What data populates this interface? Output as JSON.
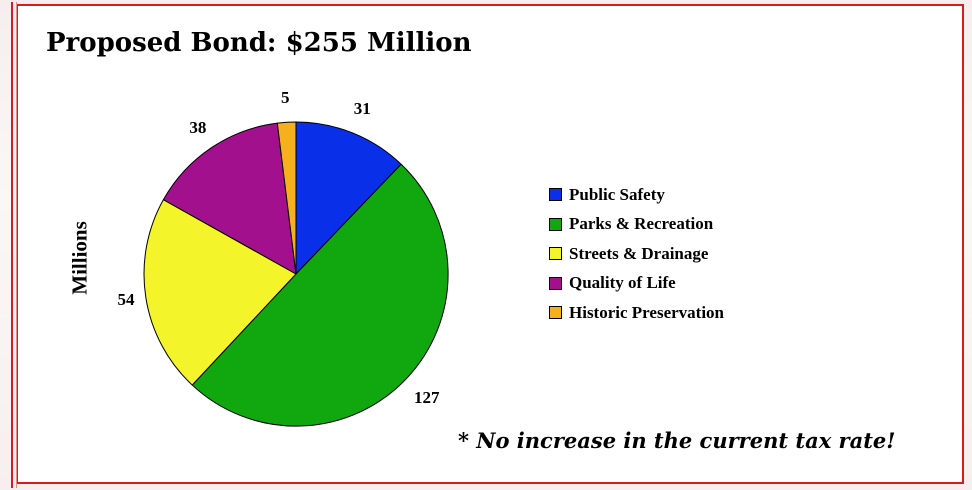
{
  "page": {
    "title": "Proposed Bond:  $255 Million",
    "note": "* No increase in the current tax rate!"
  },
  "colors": {
    "frame": "#d61c1c",
    "public_safety": "#0a2fe8",
    "parks_recreation": "#10a80e",
    "streets_drainage": "#f4f42a",
    "quality_of_life": "#a2108e",
    "historic_preservation": "#f6b01e"
  },
  "chart_data": {
    "type": "pie",
    "title": "Proposed Bond:  $255 Million",
    "ylabel": "Millions",
    "legend_position": "right",
    "categories": [
      "Public Safety",
      "Parks & Recreation",
      "Streets & Drainage",
      "Quality of Life",
      "Historic Preservation"
    ],
    "values": [
      31,
      127,
      54,
      38,
      5
    ],
    "labels": [
      "31",
      "127",
      "54",
      "38",
      "5"
    ],
    "colors": [
      "#0a2fe8",
      "#10a80e",
      "#f4f42a",
      "#a2108e",
      "#f6b01e"
    ],
    "start": "12 o'clock",
    "direction": "clockwise"
  }
}
